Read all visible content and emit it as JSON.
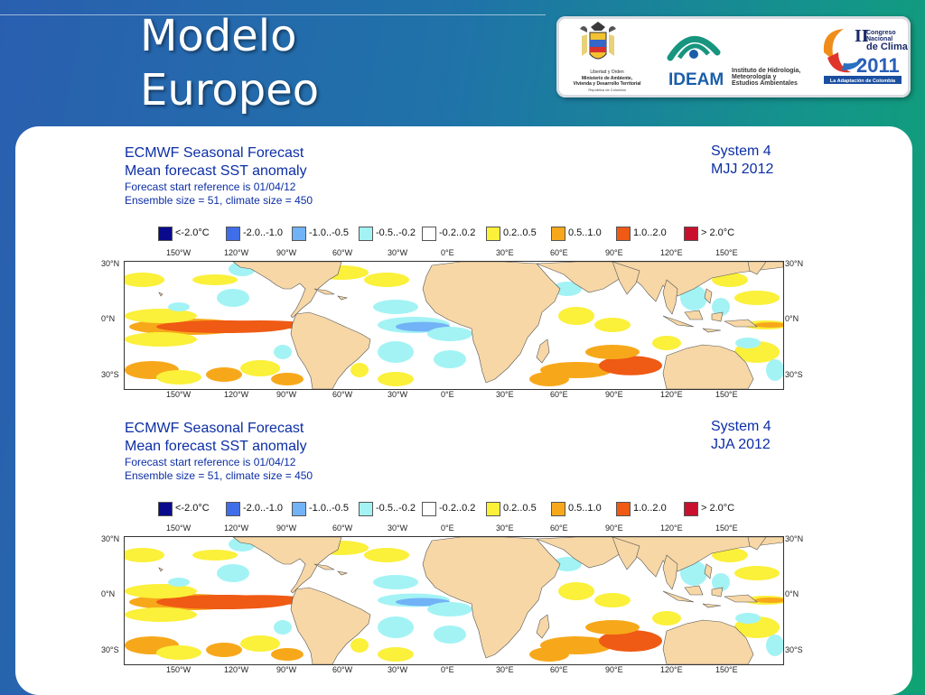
{
  "slide": {
    "title_line1": "Modelo",
    "title_line2": "Europeo"
  },
  "logos": {
    "ministry": {
      "line1": "Libertad y Orden",
      "line2": "Ministerio de Ambiente,",
      "line3": "Vivienda y Desarrollo Territorial",
      "line4": "República de Colombia"
    },
    "ideam": {
      "name": "IDEAM",
      "line1": "Instituto de Hidrología,",
      "line2": "Meteorología y",
      "line3": "Estudios Ambientales"
    },
    "congress": {
      "roman": "II",
      "line1": "Congreso",
      "line2": "Nacional",
      "line3": "de Clima",
      "year": "2011",
      "tagline": "La Adaptación de Colombia"
    }
  },
  "forecasts": [
    {
      "title": "ECMWF Seasonal Forecast",
      "subtitle": "Mean forecast SST anomaly",
      "reference": "Forecast start reference is 01/04/12",
      "ensemble": "Ensemble size = 51, climate size = 450",
      "system": "System 4",
      "period": "MJJ 2012"
    },
    {
      "title": "ECMWF Seasonal Forecast",
      "subtitle": "Mean forecast SST anomaly",
      "reference": "Forecast start reference is 01/04/12",
      "ensemble": "Ensemble size = 51, climate size = 450",
      "system": "System 4",
      "period": "JJA 2012"
    }
  ],
  "legend": [
    {
      "label": "<-2.0°C",
      "color": "#0a0a8c"
    },
    {
      "label": "-2.0..-1.0",
      "color": "#3f6ee8"
    },
    {
      "label": "-1.0..-0.5",
      "color": "#72b3f7"
    },
    {
      "label": "-0.5..-0.2",
      "color": "#a3f3f5"
    },
    {
      "label": "-0.2..0.2",
      "color": "#ffffff"
    },
    {
      "label": "0.2..0.5",
      "color": "#fbf03a"
    },
    {
      "label": "0.5..1.0",
      "color": "#f7a81a"
    },
    {
      "label": "1.0..2.0",
      "color": "#ef5a14"
    },
    {
      "label": "> 2.0°C",
      "color": "#c8102e"
    }
  ],
  "longitude_labels": [
    "150°W",
    "120°W",
    "90°W",
    "60°W",
    "30°W",
    "0°E",
    "30°E",
    "60°E",
    "90°E",
    "120°E",
    "150°E"
  ],
  "latitude_labels": [
    "30°N",
    "0°N",
    "30°S"
  ],
  "colors": {
    "land": "#f7d7a6",
    "ocean": "#ffffff",
    "header_text": "#0c2ea6"
  }
}
